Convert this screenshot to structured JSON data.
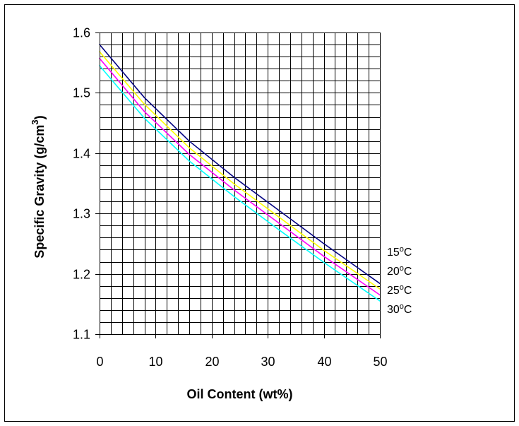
{
  "chart_data": {
    "type": "line",
    "title": "",
    "xlabel": "Oil Content (wt%)",
    "ylabel": "Specific Gravity (g/cm³)",
    "ylabel_parts": {
      "main": "Specific Gravity (g/cm",
      "sup": "3",
      "end": ")"
    },
    "xlim": [
      0,
      50
    ],
    "ylim": [
      1.1,
      1.6
    ],
    "x_ticks": [
      0,
      10,
      20,
      30,
      40,
      50
    ],
    "x_tick_labels": [
      "0",
      "10",
      "20",
      "30",
      "40",
      "50"
    ],
    "y_ticks": [
      1.1,
      1.2,
      1.3,
      1.4,
      1.5,
      1.6
    ],
    "y_tick_labels": [
      "1.1",
      "1.2",
      "1.3",
      "1.4",
      "1.5",
      "1.6"
    ],
    "x_minor_step": 2,
    "y_minor_step": 0.02,
    "grid": true,
    "legend": "right-end",
    "x": [
      0,
      8,
      16,
      24,
      32,
      40,
      50
    ],
    "series": [
      {
        "name": "15°C",
        "label_main": "15",
        "label_sup": "o",
        "label_end": "C",
        "color": "#000080",
        "values": [
          1.58,
          1.492,
          1.42,
          1.36,
          1.305,
          1.25,
          1.184
        ]
      },
      {
        "name": "20°C",
        "label_main": "20",
        "label_sup": "o",
        "label_end": "C",
        "color": "#ffff00",
        "values": [
          1.568,
          1.481,
          1.409,
          1.349,
          1.294,
          1.239,
          1.175
        ]
      },
      {
        "name": "25°C",
        "label_main": "25",
        "label_sup": "o",
        "label_end": "C",
        "color": "#ff00ff",
        "values": [
          1.557,
          1.469,
          1.398,
          1.339,
          1.284,
          1.229,
          1.165
        ]
      },
      {
        "name": "30°C",
        "label_main": "30",
        "label_sup": "o",
        "label_end": "C",
        "color": "#00ffff",
        "values": [
          1.545,
          1.458,
          1.387,
          1.328,
          1.273,
          1.219,
          1.155
        ]
      }
    ]
  }
}
